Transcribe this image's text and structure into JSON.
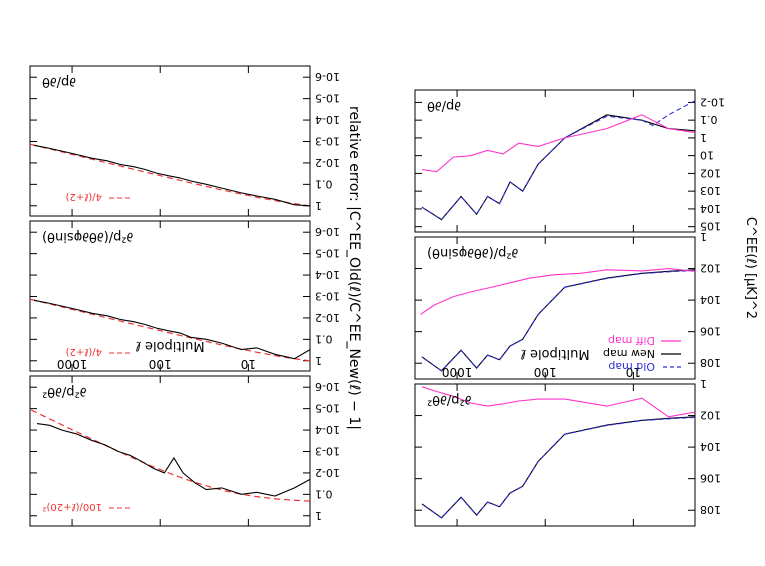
{
  "figure": {
    "rotation": "upside-down",
    "y_axis_title": "relative error: |C^EE_Old(ℓ)/C^EE_New(ℓ) − 1|",
    "right_y_axis_title": "C^EE(ℓ)  [μK]^2"
  },
  "colors": {
    "old_map": "#2d2dd8",
    "new_map": "#000000",
    "diff_map": "#ff33cc",
    "reference": "#ee3333",
    "axis": "#000000"
  },
  "chart_data": [
    {
      "id": "power-d2p-dtheta2",
      "type": "line",
      "panel_label": "∂²p/∂θ²",
      "xlabel": "Multipole  ℓ",
      "x_scale": "log",
      "y_scale": "log",
      "xlim": [
        2,
        3000
      ],
      "ylim": [
        1,
        1000000000.0
      ],
      "xticks": [
        10,
        100,
        1000
      ],
      "xtick_labels": [
        "10",
        "100",
        "1000"
      ],
      "yticks": [
        1,
        100,
        10000,
        1000000,
        100000000
      ],
      "ytick_labels": [
        "1",
        "10^2",
        "10^4",
        "10^6",
        "10^8"
      ],
      "series": [
        {
          "key": "new",
          "x": [
            2,
            4,
            8,
            20,
            60,
            120,
            180,
            250,
            330,
            450,
            600,
            900,
            1500,
            2500
          ],
          "y": [
            120,
            150,
            200,
            400,
            1500,
            80000,
            3000000,
            8000000,
            60000000,
            30000000,
            200000000,
            15000000,
            300000000,
            40000000
          ]
        },
        {
          "key": "old",
          "x": [
            2,
            4,
            8,
            20,
            60,
            120,
            180,
            250,
            330,
            450,
            600,
            900,
            1500,
            2500
          ],
          "y": [
            130,
            160,
            210,
            420,
            1550,
            82000,
            3100000,
            8200000,
            62000000,
            31000000,
            210000000,
            15500000,
            310000000,
            41000000
          ]
        },
        {
          "key": "diff",
          "x": [
            2,
            4,
            8,
            20,
            60,
            120,
            200,
            300,
            450,
            700,
            1100,
            1700,
            2500
          ],
          "y": [
            60,
            120,
            8,
            25,
            9,
            9,
            12,
            18,
            25,
            16,
            6,
            3,
            1.5
          ]
        }
      ]
    },
    {
      "id": "power-d2p-dthetadphi",
      "type": "line",
      "panel_label": "∂²p/(∂θ∂φsinθ)",
      "xlabel": "",
      "x_scale": "log",
      "y_scale": "log",
      "xlim": [
        2,
        3000
      ],
      "ylim": [
        1,
        1000000000.0
      ],
      "xticks": [
        10,
        100,
        1000
      ],
      "xtick_labels": [
        "",
        "",
        ""
      ],
      "yticks": [
        1,
        100,
        10000,
        1000000,
        100000000
      ],
      "ytick_labels": [
        "1",
        "10^2",
        "10^4",
        "10^6",
        "10^8"
      ],
      "series": [
        {
          "key": "new",
          "x": [
            2,
            4,
            8,
            20,
            60,
            120,
            180,
            250,
            330,
            450,
            600,
            900,
            1500,
            2500
          ],
          "y": [
            120,
            150,
            200,
            400,
            1500,
            80000,
            3000000,
            8000000,
            60000000,
            30000000,
            200000000,
            15000000,
            300000000,
            40000000
          ]
        },
        {
          "key": "old",
          "x": [
            2,
            4,
            8,
            20,
            60,
            120,
            180,
            250,
            330,
            450,
            600,
            900,
            1500,
            2500
          ],
          "y": [
            130,
            160,
            210,
            420,
            1550,
            82000,
            3100000,
            8200000,
            62000000,
            31000000,
            210000000,
            15500000,
            310000000,
            41000000
          ]
        },
        {
          "key": "diff",
          "x": [
            2,
            4,
            8,
            20,
            40,
            80,
            150,
            250,
            400,
            700,
            1100,
            1800,
            2600
          ],
          "y": [
            150,
            100,
            140,
            120,
            200,
            250,
            400,
            800,
            1500,
            3000,
            6000,
            20000,
            80000
          ]
        }
      ],
      "legend": [
        {
          "key": "old",
          "label": "Old map",
          "style": "dashed"
        },
        {
          "key": "new",
          "label": "New map",
          "style": "solid"
        },
        {
          "key": "diff",
          "label": "Diff map",
          "style": "solid"
        }
      ]
    },
    {
      "id": "power-dp-dtheta",
      "type": "line",
      "panel_label": "∂p/∂θ",
      "xlabel": "",
      "x_scale": "log",
      "y_scale": "log",
      "xlim": [
        2,
        3000
      ],
      "ylim": [
        0.002,
        200000
      ],
      "xticks": [
        10,
        100,
        1000
      ],
      "xtick_labels": [
        "",
        "",
        ""
      ],
      "yticks": [
        0.01,
        0.1,
        1,
        10,
        100,
        1000,
        10000,
        100000
      ],
      "ytick_labels": [
        "10^-2",
        "0.1",
        "1",
        "10",
        "10^2",
        "10^3",
        "10^4",
        "10^5"
      ],
      "series": [
        {
          "key": "new",
          "x": [
            2,
            4,
            8,
            20,
            60,
            120,
            180,
            250,
            330,
            450,
            600,
            900,
            1500,
            2500
          ],
          "y": [
            0.4,
            0.3,
            0.1,
            0.05,
            1,
            30,
            1000,
            300,
            5000,
            2000,
            20000,
            2000,
            40000,
            8000
          ]
        },
        {
          "key": "old",
          "x": [
            2,
            4,
            6,
            8,
            20,
            60,
            120,
            180,
            250,
            330,
            450,
            600,
            900,
            1500,
            2500
          ],
          "y": [
            0.008,
            0.05,
            0.2,
            0.1,
            0.06,
            1,
            30,
            1000,
            300,
            5000,
            2000,
            20000,
            2000,
            40000,
            8000
          ]
        },
        {
          "key": "diff",
          "x": [
            2,
            4,
            8,
            20,
            60,
            120,
            200,
            300,
            450,
            700,
            1100,
            1700,
            2500
          ],
          "y": [
            0.5,
            0.3,
            0.05,
            0.3,
            1,
            3,
            2,
            8,
            5,
            10,
            12,
            80,
            60
          ]
        }
      ]
    },
    {
      "id": "error-d2p-dtheta2",
      "type": "line",
      "panel_label": "∂²p/∂θ²",
      "xlabel": "Multipole  ℓ",
      "x_scale": "log",
      "y_scale": "log",
      "xlim": [
        2,
        3000
      ],
      "ylim": [
        3e-07,
        3
      ],
      "xticks": [
        10,
        100,
        1000
      ],
      "xtick_labels": [
        "10",
        "100",
        "1000"
      ],
      "yticks": [
        1,
        0.1,
        0.01,
        0.001,
        0.0001,
        1e-05,
        1e-06
      ],
      "ytick_labels": [
        "1",
        "0.1",
        "10^-2",
        "10^-3",
        "10^-4",
        "10^-5",
        "10^-6"
      ],
      "reference_label": "100/(ℓ+20)²",
      "reference_fn": "100/(l+20)^2",
      "series": [
        {
          "key": "error",
          "x": [
            2,
            3,
            5,
            8,
            12,
            20,
            30,
            40,
            55,
            70,
            90,
            120,
            160,
            220,
            300,
            420,
            600,
            900,
            1300,
            1800,
            2500
          ],
          "y": [
            0.02,
            0.05,
            0.12,
            0.08,
            0.1,
            0.05,
            0.06,
            0.03,
            0.01,
            0.002,
            0.01,
            0.006,
            0.003,
            0.0015,
            0.001,
            0.0005,
            0.0003,
            0.00015,
            0.0001,
            6e-05,
            5e-05
          ]
        }
      ]
    },
    {
      "id": "error-d2p-dthetadphi",
      "type": "line",
      "panel_label": "∂²p/(∂θ∂φsinθ)",
      "xlabel": "",
      "x_scale": "log",
      "y_scale": "log",
      "xlim": [
        2,
        3000
      ],
      "ylim": [
        3e-07,
        3
      ],
      "xticks": [
        10,
        100,
        1000
      ],
      "xtick_labels": [
        "",
        "",
        ""
      ],
      "yticks": [
        1,
        0.1,
        0.01,
        0.001,
        0.0001,
        1e-05,
        1e-06
      ],
      "ytick_labels": [
        "1",
        "0.1",
        "10^-2",
        "10^-3",
        "10^-4",
        "10^-5",
        "10^-6"
      ],
      "reference_label": "4/(ℓ+2)",
      "reference_fn": "4/(l+2)",
      "series": [
        {
          "key": "error",
          "x": [
            2,
            3,
            5,
            8,
            12,
            20,
            30,
            45,
            60,
            80,
            110,
            150,
            200,
            280,
            400,
            600,
            900,
            1300,
            1900,
            2700
          ],
          "y": [
            0.3,
            0.8,
            0.5,
            0.25,
            0.3,
            0.15,
            0.1,
            0.08,
            0.05,
            0.04,
            0.03,
            0.02,
            0.015,
            0.012,
            0.008,
            0.006,
            0.004,
            0.0028,
            0.002,
            0.0015
          ]
        }
      ]
    },
    {
      "id": "error-dp-dtheta",
      "type": "line",
      "panel_label": "∂p/∂θ",
      "xlabel": "",
      "x_scale": "log",
      "y_scale": "log",
      "xlim": [
        2,
        3000
      ],
      "ylim": [
        3e-07,
        3
      ],
      "xticks": [
        10,
        100,
        1000
      ],
      "xtick_labels": [
        "",
        "",
        ""
      ],
      "yticks": [
        1,
        0.1,
        0.01,
        0.001,
        0.0001,
        1e-05,
        1e-06
      ],
      "ytick_labels": [
        "1",
        "0.1",
        "10^-2",
        "10^-3",
        "10^-4",
        "10^-5",
        "10^-6"
      ],
      "reference_label": "4/(ℓ+2)",
      "reference_fn": "4/(l+2)",
      "series": [
        {
          "key": "error",
          "x": [
            2,
            3,
            5,
            8,
            12,
            20,
            30,
            45,
            60,
            80,
            110,
            150,
            200,
            280,
            400,
            600,
            900,
            1300,
            1900,
            2700
          ],
          "y": [
            1,
            0.9,
            0.5,
            0.35,
            0.25,
            0.15,
            0.1,
            0.07,
            0.05,
            0.04,
            0.03,
            0.02,
            0.015,
            0.012,
            0.008,
            0.006,
            0.004,
            0.0028,
            0.002,
            0.0015
          ]
        }
      ]
    }
  ]
}
